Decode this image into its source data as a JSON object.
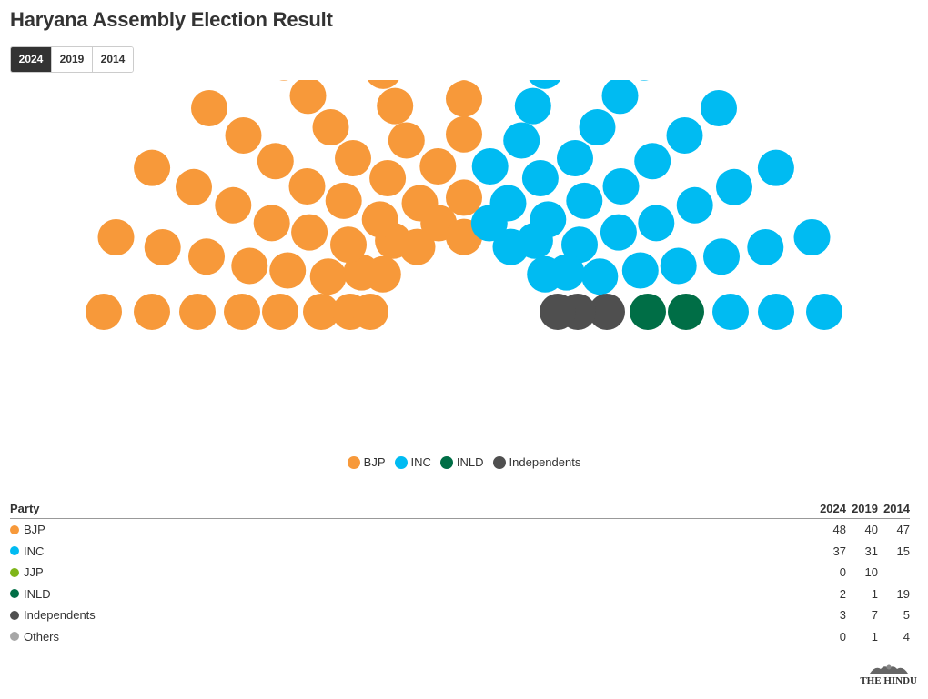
{
  "header": {
    "title": "Haryana Assembly Election Result"
  },
  "tabs": [
    {
      "label": "2024",
      "active": true
    },
    {
      "label": "2019",
      "active": false
    },
    {
      "label": "2014",
      "active": false
    }
  ],
  "chart_data": {
    "type": "hemicycle",
    "year": "2024",
    "total_seats": 90,
    "series": [
      {
        "name": "BJP",
        "value": 48,
        "color": "#f7993a"
      },
      {
        "name": "INC",
        "value": 37,
        "color": "#00bbf2"
      },
      {
        "name": "INLD",
        "value": 2,
        "color": "#006e46"
      },
      {
        "name": "Independents",
        "value": 3,
        "color": "#4f4f4f"
      }
    ],
    "legend_position": "bottom-center"
  },
  "legend": [
    {
      "label": "BJP",
      "color": "#f7993a"
    },
    {
      "label": "INC",
      "color": "#00bbf2"
    },
    {
      "label": "INLD",
      "color": "#006e46"
    },
    {
      "label": "Independents",
      "color": "#4f4f4f"
    }
  ],
  "table": {
    "headers": {
      "party": "Party",
      "y2024": "2024",
      "y2019": "2019",
      "y2014": "2014"
    },
    "rows": [
      {
        "party": "BJP",
        "color": "#f7993a",
        "y2024": "48",
        "y2019": "40",
        "y2014": "47"
      },
      {
        "party": "INC",
        "color": "#00bbf2",
        "y2024": "37",
        "y2019": "31",
        "y2014": "15"
      },
      {
        "party": "JJP",
        "color": "#7fb519",
        "y2024": "0",
        "y2019": "10",
        "y2014": ""
      },
      {
        "party": "INLD",
        "color": "#006e46",
        "y2024": "2",
        "y2019": "1",
        "y2014": "19"
      },
      {
        "party": "Independents",
        "color": "#4f4f4f",
        "y2024": "3",
        "y2019": "7",
        "y2014": "5"
      },
      {
        "party": "Others",
        "color": "#a6a6a6",
        "y2024": "0",
        "y2019": "1",
        "y2014": "4"
      }
    ]
  },
  "branding": {
    "logo_text": "THE HINDU"
  }
}
